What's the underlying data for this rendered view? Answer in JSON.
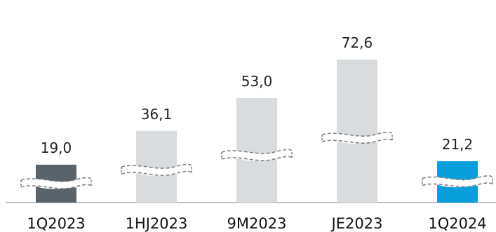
{
  "chart_data": {
    "type": "bar",
    "categories": [
      "1Q2023",
      "1HJ2023",
      "9M2023",
      "JE2023",
      "1Q2024"
    ],
    "values": [
      19.0,
      36.1,
      53.0,
      72.6,
      21.2
    ],
    "value_labels": [
      "19,0",
      "36,1",
      "53,0",
      "72,6",
      "21,2"
    ],
    "colors": [
      "#59636a",
      "#d9dcde",
      "#d9dcde",
      "#d9dcde",
      "#0a9fdc"
    ],
    "axis_break": true,
    "grid": false,
    "title": "",
    "xlabel": "",
    "ylabel": ""
  }
}
